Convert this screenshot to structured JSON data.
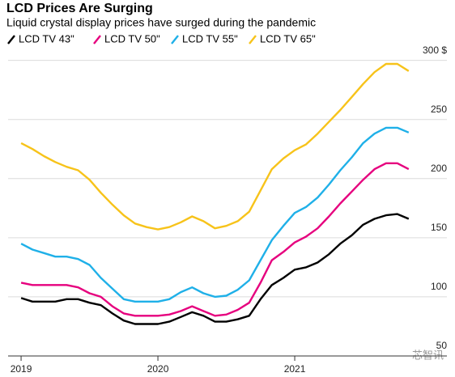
{
  "chart_data": {
    "type": "line",
    "title": "LCD Prices Are Surging",
    "subtitle": "Liquid crystal display prices have surged during the pandemic",
    "watermark": "芯智讯",
    "x": [
      2019.0,
      2019.083,
      2019.167,
      2019.25,
      2019.333,
      2019.417,
      2019.5,
      2019.583,
      2019.667,
      2019.75,
      2019.833,
      2019.917,
      2020.0,
      2020.083,
      2020.167,
      2020.25,
      2020.333,
      2020.417,
      2020.5,
      2020.583,
      2020.667,
      2020.75,
      2020.833,
      2020.917,
      2021.0,
      2021.083,
      2021.167,
      2021.25,
      2021.333,
      2021.417,
      2021.5,
      2021.583,
      2021.667,
      2021.75,
      2021.833
    ],
    "series": [
      {
        "name": "LCD TV 43\"",
        "color": "#000000",
        "values": [
          99,
          96,
          96,
          96,
          98,
          98,
          95,
          93,
          86,
          80,
          77,
          77,
          77,
          79,
          83,
          87,
          84,
          79,
          79,
          81,
          84,
          98,
          110,
          116,
          123,
          125,
          129,
          136,
          145,
          152,
          161,
          166,
          169,
          170,
          166
        ]
      },
      {
        "name": "LCD TV 50\"",
        "color": "#e6007e",
        "values": [
          112,
          110,
          110,
          110,
          110,
          108,
          103,
          100,
          92,
          86,
          84,
          84,
          84,
          85,
          88,
          92,
          88,
          84,
          85,
          89,
          95,
          112,
          131,
          138,
          146,
          151,
          158,
          168,
          179,
          189,
          199,
          208,
          213,
          213,
          208
        ]
      },
      {
        "name": "LCD TV 55\"",
        "color": "#1fb0e8",
        "values": [
          145,
          140,
          137,
          134,
          134,
          132,
          127,
          116,
          107,
          98,
          96,
          96,
          96,
          98,
          104,
          108,
          103,
          100,
          101,
          106,
          114,
          131,
          148,
          160,
          171,
          176,
          184,
          195,
          207,
          218,
          230,
          238,
          243,
          243,
          239
        ]
      },
      {
        "name": "LCD TV 65\"",
        "color": "#f7c31a",
        "values": [
          230,
          225,
          219,
          214,
          210,
          207,
          199,
          188,
          178,
          169,
          162,
          159,
          157,
          159,
          163,
          168,
          164,
          158,
          160,
          164,
          172,
          190,
          208,
          217,
          224,
          229,
          238,
          248,
          258,
          269,
          280,
          290,
          297,
          297,
          291
        ]
      }
    ],
    "xlim": [
      2018.905,
      2021.982
    ],
    "xticks": [
      2019,
      2020,
      2021
    ],
    "ylim": [
      50,
      310
    ],
    "yticks": [
      50,
      100,
      150,
      200,
      250,
      {
        "value": 300,
        "label": "300 $"
      }
    ],
    "grid": true
  }
}
